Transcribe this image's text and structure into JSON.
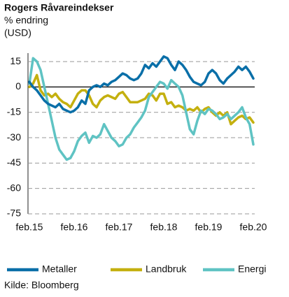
{
  "chart_data": {
    "type": "line",
    "title": "Rogers Råvareindekser",
    "subtitle": [
      "% endring",
      "(USD)"
    ],
    "source": "Kilde: Bloomberg",
    "categories": [
      "feb.15",
      null,
      null,
      null,
      null,
      null,
      null,
      null,
      null,
      null,
      null,
      null,
      "feb.16",
      null,
      null,
      null,
      null,
      null,
      null,
      null,
      null,
      null,
      null,
      null,
      "feb.17",
      null,
      null,
      null,
      null,
      null,
      null,
      null,
      null,
      null,
      null,
      null,
      "feb.18",
      null,
      null,
      null,
      null,
      null,
      null,
      null,
      null,
      null,
      null,
      null,
      "feb.19",
      null,
      null,
      null,
      null,
      null,
      null,
      null,
      null,
      null,
      null,
      null,
      "feb.20"
    ],
    "series": [
      {
        "name": "Metaller",
        "color": "#0a6fa8",
        "values": [
          3,
          0,
          -2,
          -5,
          -8,
          -10,
          -11,
          -12,
          -10,
          -13,
          -14,
          -15,
          -14,
          -12,
          -8,
          -10,
          -2,
          0,
          1,
          0,
          2,
          1,
          3,
          4,
          6,
          8,
          7,
          5,
          4,
          5,
          8,
          13,
          11,
          14,
          12,
          15,
          18,
          17,
          13,
          10,
          15,
          13,
          10,
          6,
          3,
          2,
          1,
          3,
          8,
          10,
          8,
          4,
          2,
          5,
          7,
          9,
          12,
          10,
          12,
          9,
          5
        ]
      },
      {
        "name": "Landbruk",
        "color": "#c4b00f",
        "values": [
          0,
          2,
          7,
          -2,
          -5,
          -4,
          -6,
          -4,
          -7,
          -9,
          -10,
          -12,
          -8,
          -4,
          -2,
          -2,
          -5,
          -10,
          -12,
          -8,
          -6,
          -5,
          -6,
          -7,
          -4,
          -3,
          -6,
          -9,
          -9,
          -9,
          -8,
          -7,
          -4,
          -5,
          -8,
          -4,
          -4,
          -10,
          -9,
          -12,
          -11,
          -12,
          -14,
          -13,
          -14,
          -12,
          -15,
          -13,
          -12,
          -15,
          -17,
          -15,
          -17,
          -15,
          -22,
          -20,
          -18,
          -17,
          -19,
          -18,
          -21
        ]
      },
      {
        "name": "Energi",
        "color": "#5fc3c3",
        "values": [
          2,
          17,
          15,
          10,
          0,
          -10,
          -20,
          -30,
          -37,
          -40,
          -43,
          -42,
          -38,
          -32,
          -29,
          -27,
          -33,
          -29,
          -30,
          -28,
          -22,
          -26,
          -30,
          -32,
          -35,
          -34,
          -30,
          -28,
          -24,
          -21,
          -18,
          -14,
          -6,
          -3,
          0,
          3,
          2,
          -1,
          4,
          2,
          0,
          -5,
          -15,
          -25,
          -28,
          -20,
          -14,
          -16,
          -13,
          -14,
          -16,
          -19,
          -18,
          -16,
          -19,
          -17,
          -15,
          -12,
          -18,
          -22,
          -34
        ]
      }
    ],
    "ylim": [
      -75,
      20
    ],
    "yticks": [
      15,
      0,
      -15,
      -30,
      -45,
      -60,
      -75
    ],
    "grid": true,
    "legend": "bottom"
  }
}
